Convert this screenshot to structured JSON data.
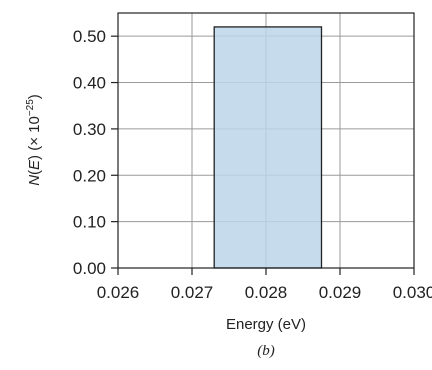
{
  "chart_data": {
    "type": "bar",
    "caption": "(b)",
    "xlabel": "Energy (eV)",
    "ylabel": "N(E) (× 10−25)",
    "ylabel_parts": {
      "n": "N",
      "e": "E",
      "rest": ") (× 10",
      "exp": "−25",
      "close": ")"
    },
    "xlim": [
      0.026,
      0.03
    ],
    "ylim": [
      0.0,
      0.55
    ],
    "x_ticks": [
      0.026,
      0.027,
      0.028,
      0.029,
      0.03
    ],
    "x_tick_labels": [
      "0.026",
      "0.027",
      "0.028",
      "0.029",
      "0.030"
    ],
    "y_ticks": [
      0.0,
      0.1,
      0.2,
      0.3,
      0.4,
      0.5
    ],
    "y_tick_labels": [
      "0.00",
      "0.10",
      "0.20",
      "0.30",
      "0.40",
      "0.50"
    ],
    "grid": true,
    "bars": [
      {
        "x_start": 0.0273,
        "x_end": 0.02875,
        "value": 0.52
      }
    ],
    "bar_fill": "#bcd6ea",
    "bar_edge": "#222222"
  }
}
